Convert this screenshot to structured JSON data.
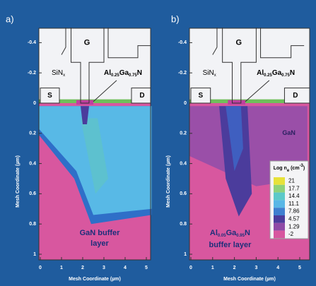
{
  "panels": [
    {
      "label": "a)",
      "gate": "G",
      "source": "S",
      "drain": "D",
      "passivation": [
        "SiN",
        "x"
      ],
      "barrier": [
        "Al",
        "0.25",
        "Ga",
        "0.75",
        "N"
      ],
      "region_label": [
        "GaN buffer",
        "layer"
      ],
      "y_axis_title": "Mesh Coordinate (µm)",
      "x_axis_title": "Mesh Coordinate (µm)",
      "yticks": [
        -0.4,
        -0.2,
        0,
        0.2,
        0.4,
        0.6,
        0.8,
        1
      ],
      "xticks": [
        0,
        1,
        2,
        3,
        4,
        5
      ]
    },
    {
      "label": "b)",
      "gate": "G",
      "source": "S",
      "drain": "D",
      "passivation": [
        "SiN",
        "x"
      ],
      "barrier": [
        "Al",
        "0.25",
        "Ga",
        "0.75",
        "N"
      ],
      "channel_label": "GaN",
      "region_label": [
        "Al",
        "0.05",
        "Ga",
        "0.95",
        "N",
        "buffer layer"
      ],
      "y_axis_title": "Mesh Coordinate (µm)",
      "x_axis_title": "Mesh Coordinate (µm)",
      "yticks": [
        -0.4,
        -0.2,
        0,
        0.2,
        0.4,
        0.6,
        0.8,
        1
      ],
      "xticks": [
        0,
        1,
        2,
        3,
        4,
        5
      ],
      "colorbar": {
        "title": [
          "Log n",
          "e",
          " (cm",
          "-3",
          ")"
        ],
        "labels": [
          21,
          17.7,
          14.4,
          11.1,
          7.86,
          4.57,
          1.29,
          -2
        ]
      }
    }
  ]
}
